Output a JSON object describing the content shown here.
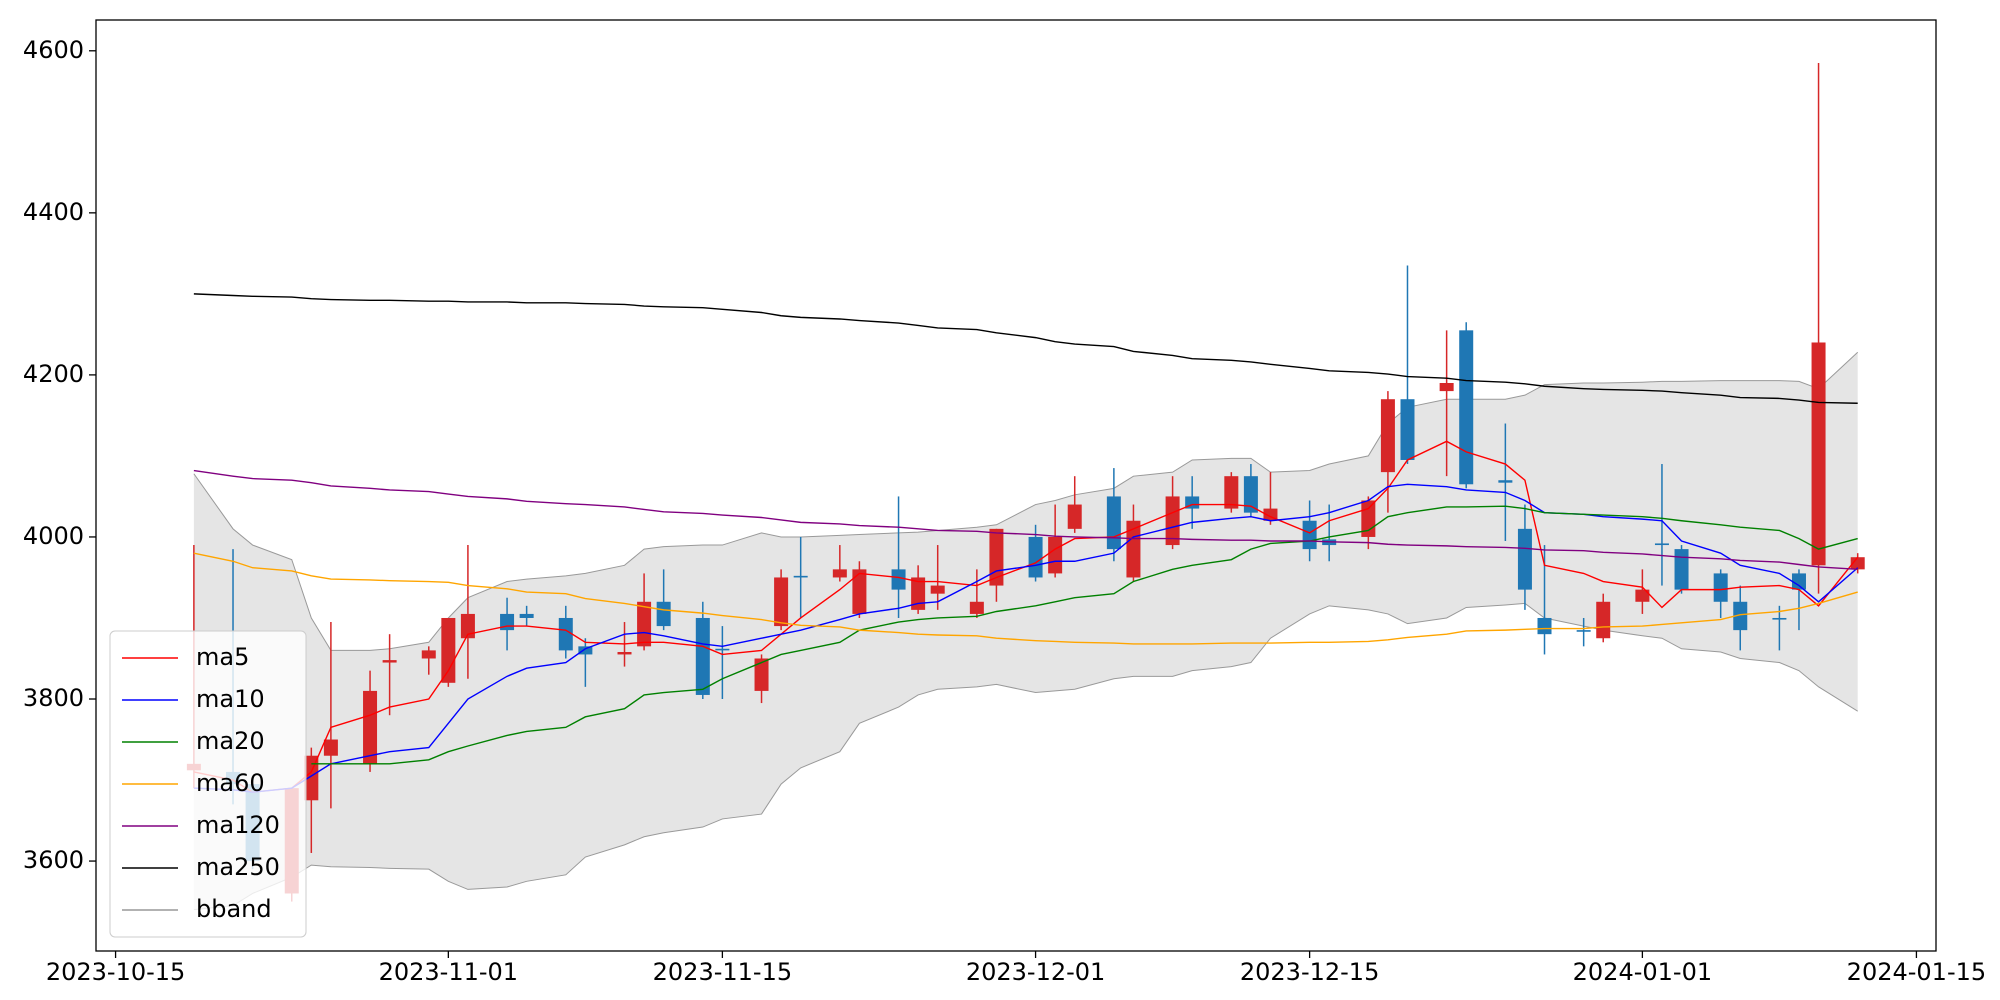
{
  "chart_data": {
    "type": "candlestick",
    "x": [
      "2023-10-19",
      "2023-10-21",
      "2023-10-22",
      "2023-10-24",
      "2023-10-25",
      "2023-10-26",
      "2023-10-28",
      "2023-10-29",
      "2023-10-31",
      "2023-11-01",
      "2023-11-02",
      "2023-11-04",
      "2023-11-05",
      "2023-11-07",
      "2023-11-08",
      "2023-11-10",
      "2023-11-11",
      "2023-11-12",
      "2023-11-14",
      "2023-11-15",
      "2023-11-17",
      "2023-11-18",
      "2023-11-19",
      "2023-11-21",
      "2023-11-22",
      "2023-11-24",
      "2023-11-25",
      "2023-11-26",
      "2023-11-28",
      "2023-11-29",
      "2023-12-01",
      "2023-12-02",
      "2023-12-03",
      "2023-12-05",
      "2023-12-06",
      "2023-12-08",
      "2023-12-09",
      "2023-12-11",
      "2023-12-12",
      "2023-12-13",
      "2023-12-15",
      "2023-12-16",
      "2023-12-18",
      "2023-12-19",
      "2023-12-20",
      "2023-12-22",
      "2023-12-23",
      "2023-12-25",
      "2023-12-26",
      "2023-12-27",
      "2023-12-29",
      "2023-12-30",
      "2024-01-01",
      "2024-01-02",
      "2024-01-03",
      "2024-01-05",
      "2024-01-06",
      "2024-01-08",
      "2024-01-09",
      "2024-01-10",
      "2024-01-12"
    ],
    "open": [
      3712,
      3710,
      3695,
      3560,
      3675,
      3730,
      3720,
      3845,
      3850,
      3820,
      3875,
      3905,
      3905,
      3900,
      3865,
      3855,
      3865,
      3920,
      3900,
      3862,
      3810,
      3890,
      3952,
      3950,
      3905,
      3960,
      3910,
      3930,
      3905,
      3940,
      4000,
      3955,
      4010,
      4050,
      3950,
      3990,
      4050,
      4035,
      4075,
      4020,
      4020,
      3997,
      4000,
      4080,
      4170,
      4180,
      4255,
      4070,
      4010,
      3900,
      3885,
      3875,
      3920,
      3992,
      3985,
      3955,
      3920,
      3900,
      3955,
      3965,
      3960
    ],
    "high": [
      3990,
      3985,
      3700,
      3690,
      3740,
      3895,
      3835,
      3880,
      3865,
      3900,
      3990,
      3925,
      3915,
      3915,
      3875,
      3895,
      3955,
      3960,
      3920,
      3890,
      3855,
      3960,
      4000,
      3990,
      3970,
      4050,
      3965,
      3990,
      3960,
      4010,
      4015,
      4040,
      4075,
      4085,
      4040,
      4075,
      4075,
      4080,
      4090,
      4080,
      4045,
      4040,
      4050,
      4180,
      4335,
      4255,
      4265,
      4140,
      4040,
      3990,
      3900,
      3930,
      3960,
      4090,
      3990,
      3960,
      3940,
      3915,
      3960,
      4585,
      3980
    ],
    "low": [
      3690,
      3670,
      3590,
      3550,
      3610,
      3665,
      3710,
      3780,
      3830,
      3815,
      3825,
      3860,
      3890,
      3850,
      3815,
      3840,
      3860,
      3885,
      3800,
      3800,
      3795,
      3885,
      3900,
      3945,
      3900,
      3900,
      3905,
      3910,
      3900,
      3920,
      3945,
      3950,
      4005,
      3970,
      3945,
      3985,
      4010,
      4030,
      4025,
      4015,
      3970,
      3970,
      3985,
      4030,
      4090,
      4075,
      4060,
      3995,
      3910,
      3855,
      3865,
      3870,
      3905,
      3940,
      3930,
      3900,
      3860,
      3860,
      3885,
      3930,
      3955
    ],
    "close": [
      3720,
      3695,
      3600,
      3690,
      3730,
      3750,
      3810,
      3848,
      3860,
      3900,
      3905,
      3885,
      3900,
      3860,
      3855,
      3858,
      3920,
      3890,
      3805,
      3860,
      3850,
      3950,
      3950,
      3960,
      3960,
      3935,
      3950,
      3940,
      3920,
      4010,
      3950,
      4000,
      4040,
      3985,
      4020,
      4050,
      4035,
      4075,
      4030,
      4035,
      3985,
      3990,
      4045,
      4170,
      4095,
      4190,
      4065,
      4067,
      3935,
      3880,
      3883,
      3920,
      3935,
      3990,
      3935,
      3920,
      3885,
      3898,
      3935,
      4240,
      3975
    ],
    "up_color": "#d62728",
    "down_color": "#1f77b4",
    "series": [
      {
        "name": "ma5",
        "color": "#ff0000",
        "values": [
          3710,
          3700,
          3685,
          3690,
          3710,
          3765,
          3780,
          3790,
          3800,
          3835,
          3880,
          3890,
          3890,
          3885,
          3870,
          3868,
          3870,
          3870,
          3865,
          3855,
          3860,
          3880,
          3900,
          3935,
          3955,
          3950,
          3945,
          3945,
          3940,
          3950,
          3968,
          3985,
          3998,
          4000,
          4010,
          4030,
          4040,
          4040,
          4038,
          4025,
          4005,
          4020,
          4035,
          4060,
          4095,
          4118,
          4105,
          4090,
          4070,
          3965,
          3955,
          3945,
          3938,
          3913,
          3935,
          3935,
          3938,
          3940,
          3935,
          3915,
          3975
        ]
      },
      {
        "name": "ma10",
        "color": "#0000ff",
        "values": [
          3690,
          3688,
          3685,
          3690,
          3705,
          3720,
          3730,
          3735,
          3740,
          3770,
          3800,
          3828,
          3838,
          3845,
          3862,
          3880,
          3882,
          3878,
          3868,
          3865,
          3875,
          3880,
          3885,
          3898,
          3905,
          3912,
          3918,
          3920,
          3945,
          3958,
          3965,
          3970,
          3970,
          3980,
          4000,
          4012,
          4018,
          4023,
          4025,
          4020,
          4025,
          4030,
          4045,
          4062,
          4065,
          4062,
          4058,
          4055,
          4045,
          4030,
          4028,
          4025,
          4022,
          4020,
          3995,
          3980,
          3965,
          3955,
          3940,
          3920,
          3962
        ]
      },
      {
        "name": "ma20",
        "color": "#008000",
        "values": [
          null,
          null,
          null,
          null,
          3720,
          3720,
          3720,
          3720,
          3725,
          3735,
          3742,
          3755,
          3760,
          3765,
          3778,
          3788,
          3805,
          3808,
          3812,
          3825,
          3845,
          3855,
          3860,
          3870,
          3885,
          3895,
          3898,
          3900,
          3902,
          3908,
          3915,
          3920,
          3925,
          3930,
          3945,
          3960,
          3965,
          3972,
          3985,
          3992,
          3995,
          4000,
          4008,
          4025,
          4030,
          4037,
          4037,
          4038,
          4035,
          4030,
          4028,
          4027,
          4025,
          4023,
          4020,
          4015,
          4012,
          4008,
          3998,
          3985,
          3998
        ]
      },
      {
        "name": "ma60",
        "color": "#ffa500",
        "values": [
          3980,
          3970,
          3962,
          3958,
          3952,
          3948,
          3947,
          3946,
          3945,
          3944,
          3940,
          3936,
          3932,
          3930,
          3924,
          3918,
          3914,
          3910,
          3906,
          3903,
          3898,
          3894,
          3891,
          3889,
          3885,
          3882,
          3880,
          3879,
          3878,
          3875,
          3872,
          3871,
          3870,
          3869,
          3868,
          3868,
          3868,
          3869,
          3869,
          3869,
          3870,
          3870,
          3871,
          3873,
          3876,
          3880,
          3884,
          3885,
          3886,
          3887,
          3887,
          3889,
          3890,
          3892,
          3894,
          3898,
          3904,
          3908,
          3912,
          3918,
          3932
        ]
      },
      {
        "name": "ma120",
        "color": "#800080",
        "values": [
          4082,
          4075,
          4072,
          4070,
          4067,
          4063,
          4060,
          4058,
          4056,
          4053,
          4050,
          4047,
          4044,
          4041,
          4040,
          4037,
          4034,
          4031,
          4029,
          4027,
          4024,
          4021,
          4018,
          4016,
          4014,
          4012,
          4010,
          4008,
          4007,
          4005,
          4003,
          4001,
          4000,
          3999,
          3998,
          3998,
          3997,
          3996,
          3996,
          3995,
          3995,
          3994,
          3993,
          3991,
          3990,
          3989,
          3988,
          3987,
          3986,
          3984,
          3983,
          3981,
          3979,
          3977,
          3975,
          3973,
          3971,
          3969,
          3966,
          3963,
          3960
        ]
      },
      {
        "name": "ma250",
        "color": "#000000",
        "values": [
          4300,
          4298,
          4297,
          4296,
          4294,
          4293,
          4292,
          4292,
          4291,
          4291,
          4290,
          4290,
          4289,
          4289,
          4288,
          4287,
          4285,
          4284,
          4283,
          4281,
          4277,
          4273,
          4271,
          4269,
          4267,
          4264,
          4261,
          4258,
          4256,
          4252,
          4246,
          4241,
          4238,
          4235,
          4229,
          4224,
          4220,
          4218,
          4216,
          4213,
          4208,
          4205,
          4203,
          4201,
          4198,
          4196,
          4193,
          4191,
          4189,
          4186,
          4183,
          4182,
          4181,
          4180,
          4178,
          4175,
          4172,
          4171,
          4169,
          4166,
          4165
        ]
      }
    ],
    "bband": {
      "name": "bband",
      "color": "#999999",
      "fill": "#e5e5e5",
      "upper": [
        4078,
        4010,
        3990,
        3972,
        3900,
        3860,
        3860,
        3862,
        3870,
        3900,
        3925,
        3945,
        3948,
        3952,
        3955,
        3965,
        3985,
        3988,
        3990,
        3990,
        4005,
        4000,
        4000,
        4002,
        4003,
        4005,
        4006,
        4008,
        4012,
        4015,
        4040,
        4045,
        4052,
        4060,
        4075,
        4080,
        4095,
        4097,
        4097,
        4080,
        4082,
        4090,
        4100,
        4140,
        4160,
        4170,
        4170,
        4170,
        4175,
        4188,
        4190,
        4190,
        4191,
        4192,
        4192,
        4193,
        4193,
        4193,
        4192,
        4183,
        4228
      ],
      "lower": [
        3540,
        3545,
        3560,
        3580,
        3595,
        3593,
        3592,
        3591,
        3590,
        3575,
        3565,
        3568,
        3575,
        3583,
        3605,
        3620,
        3630,
        3635,
        3642,
        3652,
        3658,
        3695,
        3715,
        3735,
        3770,
        3790,
        3805,
        3812,
        3815,
        3818,
        3808,
        3810,
        3812,
        3825,
        3828,
        3828,
        3835,
        3840,
        3845,
        3875,
        3905,
        3915,
        3910,
        3905,
        3893,
        3900,
        3913,
        3916,
        3918,
        3900,
        3890,
        3885,
        3878,
        3875,
        3862,
        3858,
        3850,
        3845,
        3835,
        3815,
        3785
      ]
    },
    "xlim": [
      "2023-10-14",
      "2024-01-16"
    ],
    "xticks": [
      "2023-10-15",
      "2023-11-01",
      "2023-11-15",
      "2023-12-01",
      "2023-12-15",
      "2024-01-01",
      "2024-01-15"
    ],
    "ylim": [
      3489,
      4638
    ],
    "yticks": [
      3600,
      3800,
      4000,
      4200,
      4400,
      4600
    ],
    "legend": "lower left"
  }
}
